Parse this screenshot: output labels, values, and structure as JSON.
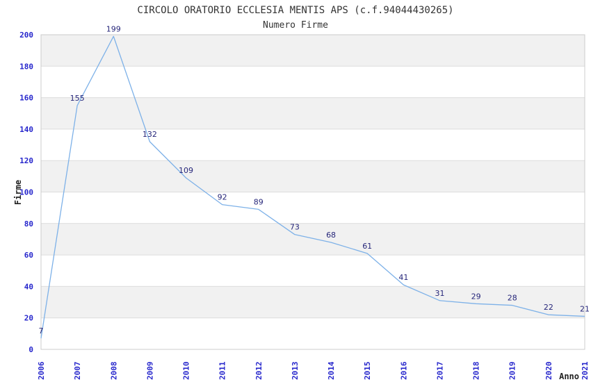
{
  "chart_data": {
    "type": "line",
    "title": "CIRCOLO ORATORIO ECCLESIA MENTIS APS (c.f.94044430265)",
    "subtitle": "Numero Firme",
    "xlabel": "Anno",
    "ylabel": "Firme",
    "categories": [
      "2006",
      "2007",
      "2008",
      "2009",
      "2010",
      "2011",
      "2012",
      "2013",
      "2014",
      "2015",
      "2016",
      "2017",
      "2018",
      "2019",
      "2020",
      "2021"
    ],
    "values": [
      7,
      155,
      199,
      132,
      109,
      92,
      89,
      73,
      68,
      61,
      41,
      31,
      29,
      28,
      22,
      21
    ],
    "ylim": [
      0,
      200
    ],
    "ytick_step": 20,
    "grid": "horizontal-bands",
    "legend": "none",
    "colors": {
      "line": "#7db1e8",
      "band": "#f1f1f1",
      "gridline": "#dcdcdc",
      "plot_border": "#cccccc",
      "tick_label": "#2626cc",
      "data_label": "#26267a",
      "title": "#333333",
      "axis_title": "#222222",
      "background": "#ffffff"
    }
  }
}
